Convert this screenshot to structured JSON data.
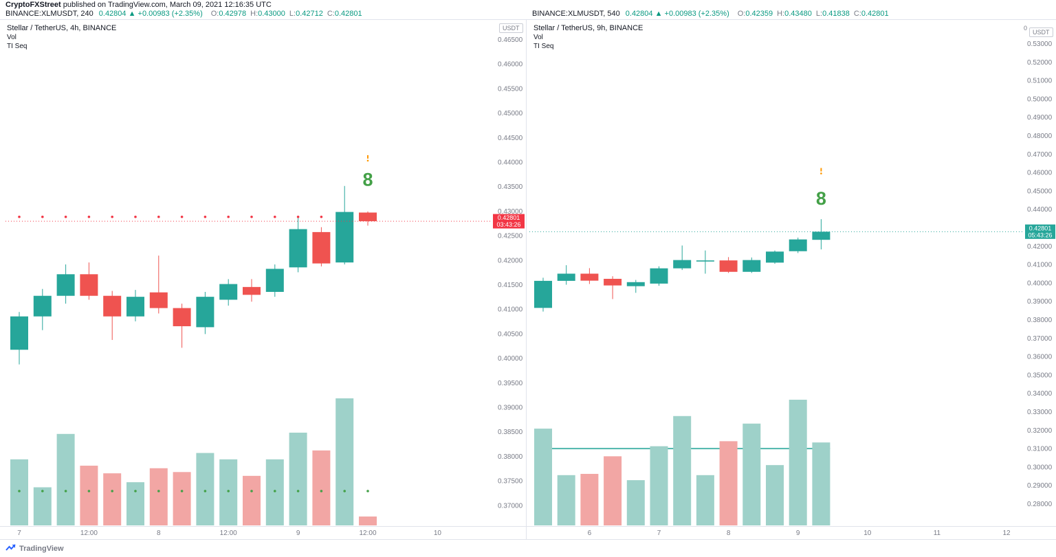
{
  "attribution": {
    "author": "CryptoFXStreet",
    "text": " published on TradingView.com, March 09, 2021 12:16:35 UTC"
  },
  "quote_bars": [
    {
      "symbol": "BINANCE:XLMUSDT, 240",
      "price": "0.42804",
      "arrow": "▲",
      "change": "+0.00983 (+2.35%)",
      "o_label": "O:",
      "o": "0.42978",
      "h_label": "H:",
      "h": "0.43000",
      "l_label": "L:",
      "l": "0.42712",
      "c_label": "C:",
      "c": "0.42801"
    },
    {
      "symbol": "BINANCE:XLMUSDT, 540",
      "price": "0.42804",
      "arrow": "▲",
      "change": "+0.00983 (+2.35%)",
      "o_label": "O:",
      "o": "0.42359",
      "h_label": "H:",
      "h": "0.43480",
      "l_label": "L:",
      "l": "0.41838",
      "c_label": "C:",
      "c": "0.42801"
    }
  ],
  "footer": {
    "brand": "TradingView"
  },
  "colors": {
    "bull": "#26a69a",
    "bear": "#ef5350",
    "vol_up": "#9ed1c9",
    "vol_down": "#f2a6a4",
    "accent_up": "#089981",
    "axis_text": "#787b86",
    "grid_border": "#e0e3eb",
    "seq_green": "#43a047",
    "dot_red": "#f23645",
    "dot_green": "#43a047",
    "marker_orange": "#ff9800",
    "text_dark": "#131722"
  },
  "chart_data": [
    {
      "type": "candlestick",
      "title": "Stellar / TetherUS, 4h, BINANCE",
      "indicators": [
        "Vol",
        "TI Seq"
      ],
      "axis_unit": "USDT",
      "price_ticks": [
        "0.46500",
        "0.46000",
        "0.45500",
        "0.45000",
        "0.44500",
        "0.44000",
        "0.43500",
        "0.43000",
        "0.42500",
        "0.42000",
        "0.41500",
        "0.41000",
        "0.40500",
        "0.40000",
        "0.39500",
        "0.39000",
        "0.38500",
        "0.38000",
        "0.37500",
        "0.37000"
      ],
      "time_labels": [
        {
          "i": 0,
          "t": "7"
        },
        {
          "i": 3,
          "t": "12:00"
        },
        {
          "i": 6,
          "t": "8"
        },
        {
          "i": 9,
          "t": "12:00"
        },
        {
          "i": 12,
          "t": "9"
        },
        {
          "i": 15,
          "t": "12:00"
        },
        {
          "i": 18,
          "t": "10"
        }
      ],
      "candles": [
        {
          "o": 0.4018,
          "h": 0.4095,
          "l": 0.3988,
          "c": 0.4086
        },
        {
          "o": 0.4086,
          "h": 0.4142,
          "l": 0.4058,
          "c": 0.4128
        },
        {
          "o": 0.4128,
          "h": 0.4192,
          "l": 0.4112,
          "c": 0.4172
        },
        {
          "o": 0.4172,
          "h": 0.4196,
          "l": 0.412,
          "c": 0.4128
        },
        {
          "o": 0.4128,
          "h": 0.4138,
          "l": 0.4038,
          "c": 0.4086
        },
        {
          "o": 0.4086,
          "h": 0.414,
          "l": 0.4076,
          "c": 0.4126
        },
        {
          "o": 0.4135,
          "h": 0.421,
          "l": 0.4092,
          "c": 0.4103
        },
        {
          "o": 0.4103,
          "h": 0.4112,
          "l": 0.4022,
          "c": 0.4066
        },
        {
          "o": 0.4064,
          "h": 0.4136,
          "l": 0.405,
          "c": 0.4126
        },
        {
          "o": 0.412,
          "h": 0.4162,
          "l": 0.4108,
          "c": 0.4152
        },
        {
          "o": 0.4146,
          "h": 0.4162,
          "l": 0.4116,
          "c": 0.413
        },
        {
          "o": 0.4136,
          "h": 0.4192,
          "l": 0.4126,
          "c": 0.4183
        },
        {
          "o": 0.4186,
          "h": 0.429,
          "l": 0.4176,
          "c": 0.4264
        },
        {
          "o": 0.4258,
          "h": 0.4268,
          "l": 0.4188,
          "c": 0.4194
        },
        {
          "o": 0.4196,
          "h": 0.4352,
          "l": 0.4192,
          "c": 0.4299
        },
        {
          "o": 0.42978,
          "h": 0.43,
          "l": 0.42712,
          "c": 0.42801
        }
      ],
      "volume": [
        0.52,
        0.3,
        0.72,
        0.47,
        0.41,
        0.34,
        0.45,
        0.42,
        0.57,
        0.52,
        0.39,
        0.52,
        0.73,
        0.59,
        1.0,
        0.07
      ],
      "current_price": {
        "value": 0.42801,
        "label": "0.42801",
        "countdown": "03:43:26",
        "color": "#f23645"
      },
      "ti_seq": {
        "top_dot_price": 0.4289,
        "top_dots_count": 14,
        "bottom_dots": true
      },
      "annotation": {
        "label": "8",
        "candle_index": 15,
        "price": 0.4365,
        "marker_price": 0.4405
      },
      "trend_line": null
    },
    {
      "type": "candlestick",
      "title": "Stellar / TetherUS, 9h, BINANCE",
      "indicators": [
        "Vol",
        "TI Seq"
      ],
      "axis_unit": "USDT",
      "axis_top_label": "0",
      "price_ticks": [
        "0.53000",
        "0.52000",
        "0.51000",
        "0.50000",
        "0.49000",
        "0.48000",
        "0.47000",
        "0.46000",
        "0.45000",
        "0.44000",
        "0.43000",
        "0.42000",
        "0.41000",
        "0.40000",
        "0.39000",
        "0.38000",
        "0.37000",
        "0.36000",
        "0.35000",
        "0.34000",
        "0.33000",
        "0.32000",
        "0.31000",
        "0.30000",
        "0.29000",
        "0.28000"
      ],
      "time_labels": [
        {
          "i": 2,
          "t": "6"
        },
        {
          "i": 5,
          "t": "7"
        },
        {
          "i": 8,
          "t": "8"
        },
        {
          "i": 11,
          "t": "9"
        },
        {
          "i": 14,
          "t": "10"
        },
        {
          "i": 17,
          "t": "11"
        },
        {
          "i": 20,
          "t": "12"
        }
      ],
      "candles": [
        {
          "o": 0.3866,
          "h": 0.403,
          "l": 0.3846,
          "c": 0.4013
        },
        {
          "o": 0.4013,
          "h": 0.4098,
          "l": 0.3992,
          "c": 0.4052
        },
        {
          "o": 0.4052,
          "h": 0.4082,
          "l": 0.3996,
          "c": 0.4014
        },
        {
          "o": 0.4024,
          "h": 0.4038,
          "l": 0.3914,
          "c": 0.3988
        },
        {
          "o": 0.3984,
          "h": 0.4018,
          "l": 0.3948,
          "c": 0.4006
        },
        {
          "o": 0.3998,
          "h": 0.4092,
          "l": 0.3986,
          "c": 0.4081
        },
        {
          "o": 0.4081,
          "h": 0.4205,
          "l": 0.4072,
          "c": 0.4126
        },
        {
          "o": 0.4118,
          "h": 0.4178,
          "l": 0.4052,
          "c": 0.4124
        },
        {
          "o": 0.4124,
          "h": 0.4142,
          "l": 0.4056,
          "c": 0.4062
        },
        {
          "o": 0.4062,
          "h": 0.414,
          "l": 0.4056,
          "c": 0.4126
        },
        {
          "o": 0.4112,
          "h": 0.4178,
          "l": 0.4106,
          "c": 0.4172
        },
        {
          "o": 0.4174,
          "h": 0.4248,
          "l": 0.4164,
          "c": 0.4238
        },
        {
          "o": 0.42359,
          "h": 0.4348,
          "l": 0.41838,
          "c": 0.42801
        }
      ],
      "volume": [
        0.77,
        0.4,
        0.41,
        0.55,
        0.36,
        0.63,
        0.87,
        0.4,
        0.67,
        0.81,
        0.48,
        1.0,
        0.66
      ],
      "current_price": {
        "value": 0.42801,
        "label": "0.42801",
        "countdown": "05:43:26",
        "color": "#26a69a"
      },
      "ti_seq": null,
      "annotation": {
        "label": "8",
        "candle_index": 12,
        "price": 0.446,
        "marker_price": 0.46
      },
      "trend_line": {
        "price": 0.3102,
        "from_index": 0,
        "to_index": 12,
        "color": "#4db6ac"
      }
    }
  ]
}
